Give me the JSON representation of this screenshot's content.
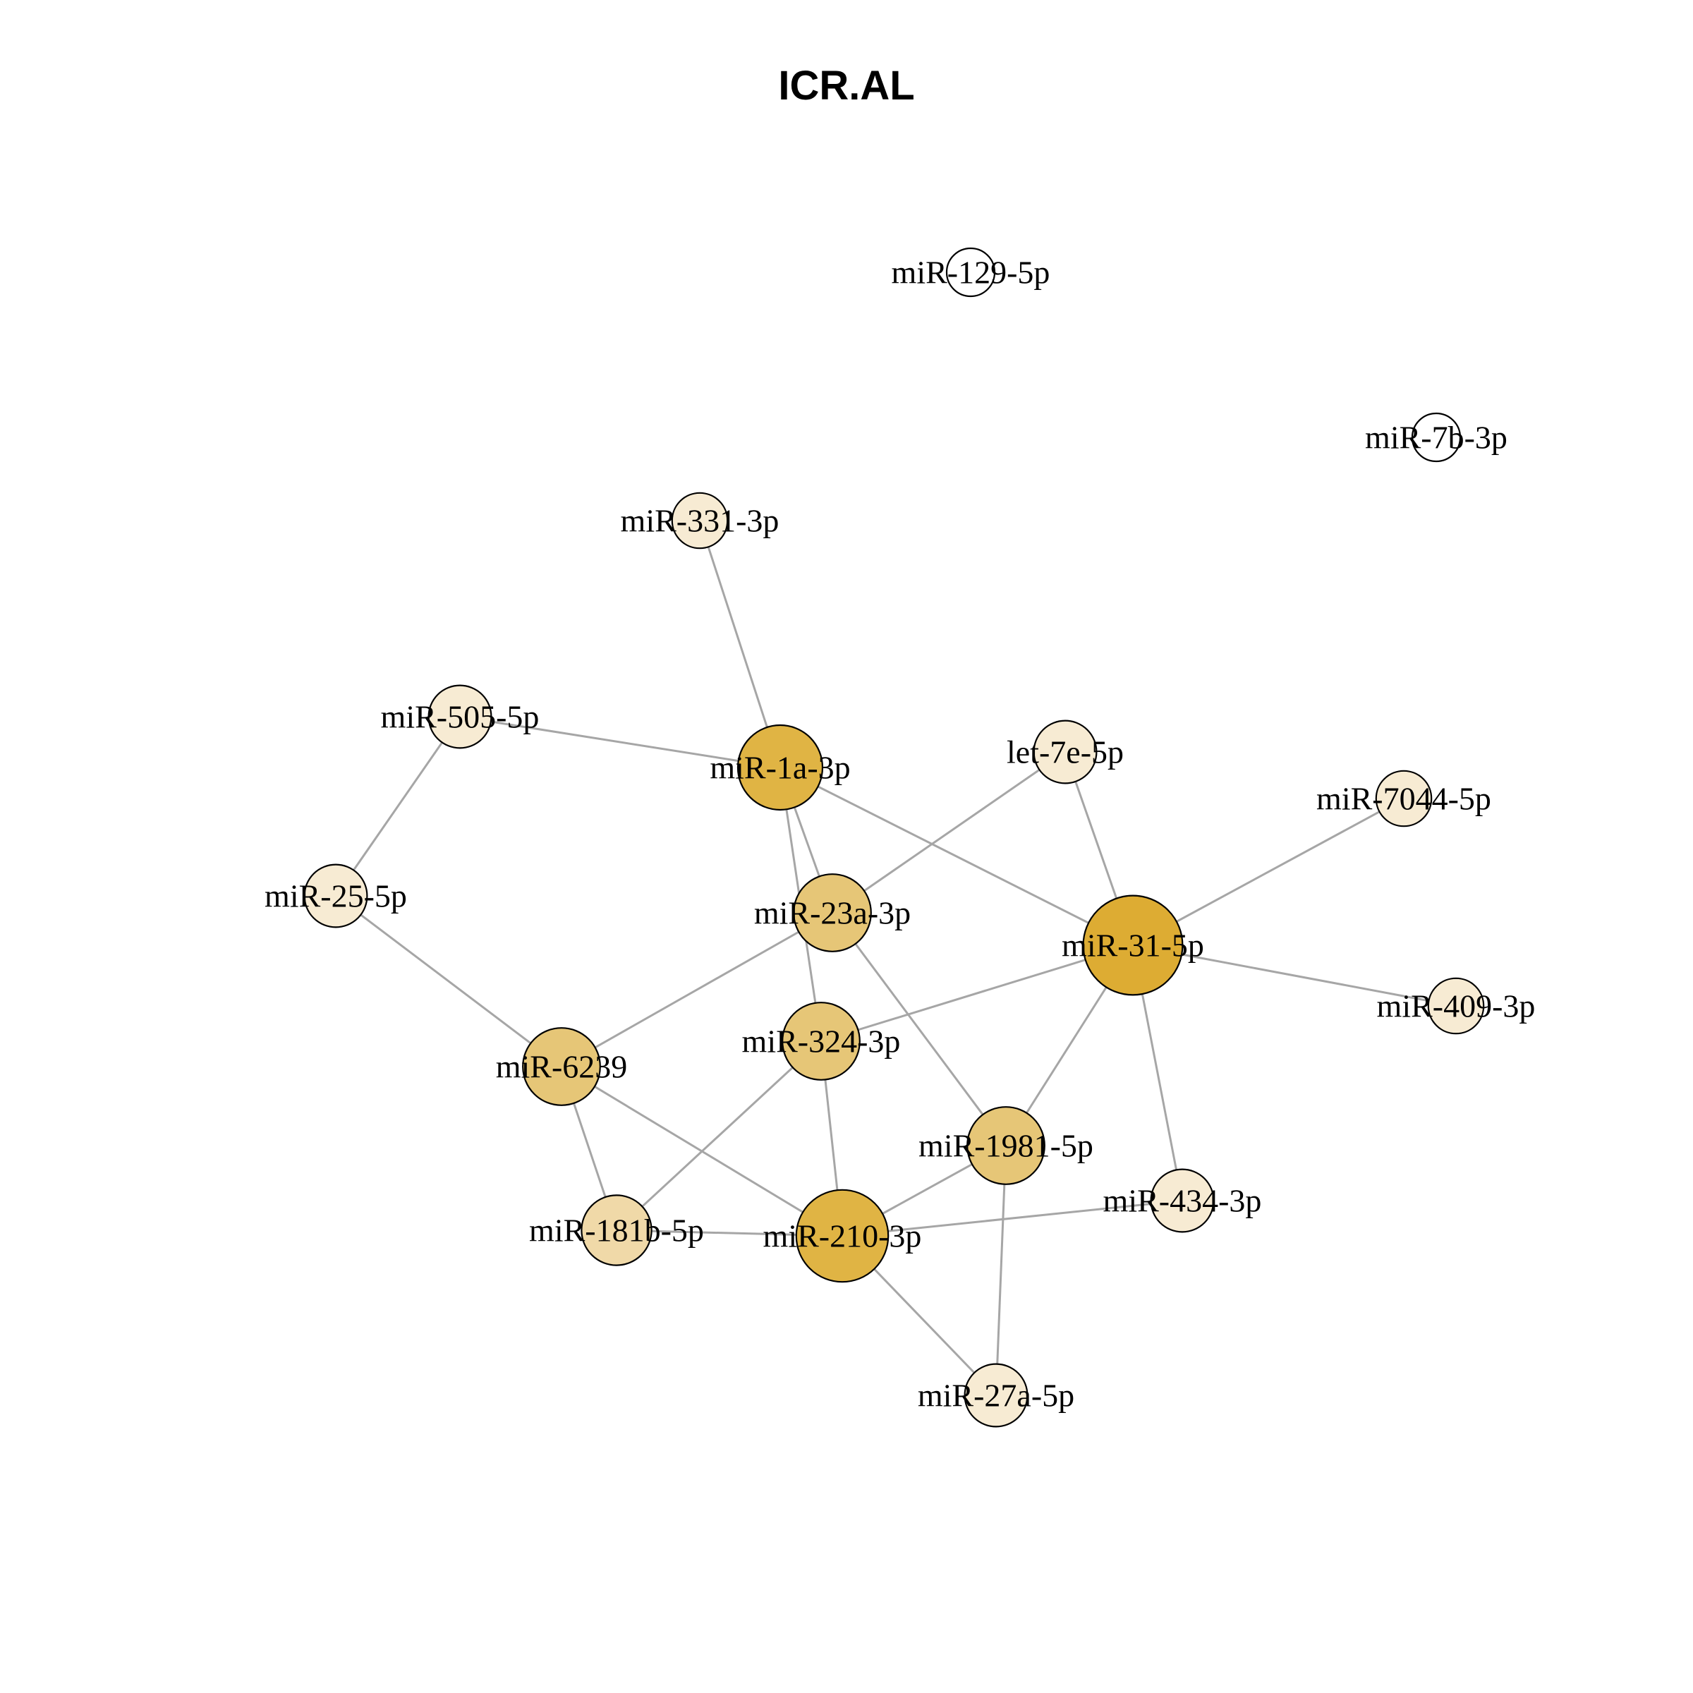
{
  "title": "ICR.AL",
  "colors": {
    "edge": "#a6a6a6",
    "node_border": "#000000",
    "node_scale": [
      "#ffffff",
      "#f7ebd3",
      "#f0d9a8",
      "#e6c677",
      "#e0b444",
      "#ddac33"
    ]
  },
  "nodes": [
    {
      "id": "miR-129-5p",
      "label": "miR-129-5p",
      "degree": 0
    },
    {
      "id": "miR-7b-3p",
      "label": "miR-7b-3p",
      "degree": 0
    },
    {
      "id": "miR-331-3p",
      "label": "miR-331-3p",
      "degree": 1
    },
    {
      "id": "miR-505-5p",
      "label": "miR-505-5p",
      "degree": 2
    },
    {
      "id": "miR-1a-3p",
      "label": "miR-1a-3p",
      "degree": 5
    },
    {
      "id": "let-7e-5p",
      "label": "let-7e-5p",
      "degree": 2
    },
    {
      "id": "miR-7044-5p",
      "label": "miR-7044-5p",
      "degree": 1
    },
    {
      "id": "miR-25-5p",
      "label": "miR-25-5p",
      "degree": 2
    },
    {
      "id": "miR-23a-3p",
      "label": "miR-23a-3p",
      "degree": 4
    },
    {
      "id": "miR-31-5p",
      "label": "miR-31-5p",
      "degree": 7
    },
    {
      "id": "miR-409-3p",
      "label": "miR-409-3p",
      "degree": 1
    },
    {
      "id": "miR-324-3p",
      "label": "miR-324-3p",
      "degree": 4
    },
    {
      "id": "miR-6239",
      "label": "miR-6239",
      "degree": 4
    },
    {
      "id": "miR-1981-5p",
      "label": "miR-1981-5p",
      "degree": 4
    },
    {
      "id": "miR-434-3p",
      "label": "miR-434-3p",
      "degree": 2
    },
    {
      "id": "miR-181b-5p",
      "label": "miR-181b-5p",
      "degree": 3
    },
    {
      "id": "miR-210-3p",
      "label": "miR-210-3p",
      "degree": 6
    },
    {
      "id": "miR-27a-5p",
      "label": "miR-27a-5p",
      "degree": 2
    }
  ],
  "edges": [
    [
      "miR-331-3p",
      "miR-1a-3p"
    ],
    [
      "miR-505-5p",
      "miR-1a-3p"
    ],
    [
      "miR-505-5p",
      "miR-25-5p"
    ],
    [
      "miR-1a-3p",
      "miR-23a-3p"
    ],
    [
      "miR-1a-3p",
      "miR-324-3p"
    ],
    [
      "miR-1a-3p",
      "miR-31-5p"
    ],
    [
      "let-7e-5p",
      "miR-23a-3p"
    ],
    [
      "let-7e-5p",
      "miR-31-5p"
    ],
    [
      "miR-7044-5p",
      "miR-31-5p"
    ],
    [
      "miR-409-3p",
      "miR-31-5p"
    ],
    [
      "miR-25-5p",
      "miR-6239"
    ],
    [
      "miR-23a-3p",
      "miR-6239"
    ],
    [
      "miR-23a-3p",
      "miR-1981-5p"
    ],
    [
      "miR-31-5p",
      "miR-324-3p"
    ],
    [
      "miR-31-5p",
      "miR-1981-5p"
    ],
    [
      "miR-31-5p",
      "miR-434-3p"
    ],
    [
      "miR-324-3p",
      "miR-210-3p"
    ],
    [
      "miR-324-3p",
      "miR-181b-5p"
    ],
    [
      "miR-6239",
      "miR-181b-5p"
    ],
    [
      "miR-6239",
      "miR-210-3p"
    ],
    [
      "miR-1981-5p",
      "miR-210-3p"
    ],
    [
      "miR-1981-5p",
      "miR-27a-5p"
    ],
    [
      "miR-181b-5p",
      "miR-210-3p"
    ],
    [
      "miR-210-3p",
      "miR-434-3p"
    ],
    [
      "miR-210-3p",
      "miR-27a-5p"
    ]
  ]
}
